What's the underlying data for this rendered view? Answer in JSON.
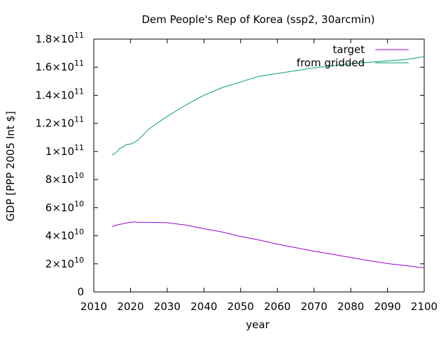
{
  "chart_data": {
    "type": "line",
    "title": "Dem People's Rep of Korea (ssp2, 30arcmin)",
    "xlabel": "year",
    "ylabel": "GDP [PPP 2005 Int $]",
    "xlim": [
      2010,
      2100
    ],
    "ylim": [
      0,
      180000000000
    ],
    "x_ticks": [
      {
        "value": 2010,
        "label": "2010"
      },
      {
        "value": 2020,
        "label": "2020"
      },
      {
        "value": 2030,
        "label": "2030"
      },
      {
        "value": 2040,
        "label": "2040"
      },
      {
        "value": 2050,
        "label": "2050"
      },
      {
        "value": 2060,
        "label": "2060"
      },
      {
        "value": 2070,
        "label": "2070"
      },
      {
        "value": 2080,
        "label": "2080"
      },
      {
        "value": 2090,
        "label": "2090"
      },
      {
        "value": 2100,
        "label": "2100"
      }
    ],
    "y_ticks": [
      {
        "value": 0,
        "mantissa": "0",
        "exponent": ""
      },
      {
        "value": 20000000000,
        "mantissa": "2×10",
        "exponent": "10"
      },
      {
        "value": 40000000000,
        "mantissa": "4×10",
        "exponent": "10"
      },
      {
        "value": 60000000000,
        "mantissa": "6×10",
        "exponent": "10"
      },
      {
        "value": 80000000000,
        "mantissa": "8×10",
        "exponent": "10"
      },
      {
        "value": 100000000000,
        "mantissa": "1×10",
        "exponent": "11"
      },
      {
        "value": 120000000000,
        "mantissa": "1.2×10",
        "exponent": "11"
      },
      {
        "value": 140000000000,
        "mantissa": "1.4×10",
        "exponent": "11"
      },
      {
        "value": 160000000000,
        "mantissa": "1.6×10",
        "exponent": "11"
      },
      {
        "value": 180000000000,
        "mantissa": "1.8×10",
        "exponent": "11"
      }
    ],
    "legend_position": "top-right",
    "grid": false,
    "series": [
      {
        "name": "target",
        "color": "#9400d3",
        "x": [
          2015,
          2016,
          2017,
          2018,
          2019,
          2020,
          2021,
          2022,
          2025,
          2030,
          2035,
          2040,
          2045,
          2050,
          2055,
          2060,
          2065,
          2070,
          2075,
          2080,
          2085,
          2090,
          2095,
          2100
        ],
        "y": [
          46500000000,
          47500000000,
          48000000000,
          48600000000,
          49200000000,
          49500000000,
          49800000000,
          49600000000,
          49500000000,
          49300000000,
          47600000000,
          45000000000,
          42600000000,
          39500000000,
          37000000000,
          34000000000,
          31500000000,
          29000000000,
          26800000000,
          24500000000,
          22300000000,
          20200000000,
          18700000000,
          17200000000
        ]
      },
      {
        "name": "from gridded",
        "color": "#009e73",
        "x": [
          2015,
          2016,
          2017,
          2018,
          2019,
          2020,
          2021,
          2022,
          2025,
          2030,
          2035,
          2040,
          2045,
          2050,
          2055,
          2060,
          2065,
          2070,
          2075,
          2080,
          2085,
          2090,
          2095,
          2100
        ],
        "y": [
          97500000000,
          99000000000,
          102000000000,
          103500000000,
          105000000000,
          105200000000,
          106500000000,
          108000000000,
          116000000000,
          125000000000,
          133000000000,
          140000000000,
          145500000000,
          149500000000,
          153500000000,
          155500000000,
          157500000000,
          159500000000,
          161000000000,
          162500000000,
          163500000000,
          164500000000,
          165500000000,
          167500000000
        ]
      }
    ]
  }
}
